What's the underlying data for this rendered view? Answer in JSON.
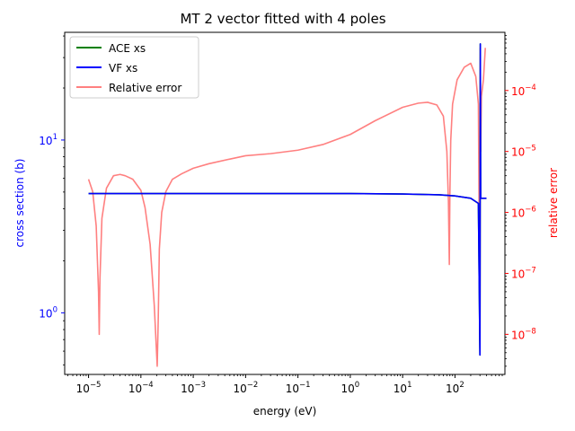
{
  "chart_data": {
    "type": "line",
    "title": "MT 2 vector fitted with 4 poles",
    "xlabel": "energy (eV)",
    "ylabel_left": "cross section (b)",
    "ylabel_right": "relative error",
    "x_scale": "log",
    "y_left_scale": "log",
    "y_right_scale": "log",
    "xlim": [
      3.5e-06,
      900
    ],
    "ylim_left": [
      0.44,
      42
    ],
    "ylim_right": [
      2.2e-09,
      0.0009
    ],
    "grid": false,
    "legend_placement": "upper-left",
    "x_ticks": [
      {
        "value": 1e-05,
        "base": "10",
        "exp": "−5"
      },
      {
        "value": 0.0001,
        "base": "10",
        "exp": "−4"
      },
      {
        "value": 0.001,
        "base": "10",
        "exp": "−3"
      },
      {
        "value": 0.01,
        "base": "10",
        "exp": "−2"
      },
      {
        "value": 0.1,
        "base": "10",
        "exp": "−1"
      },
      {
        "value": 1,
        "base": "10",
        "exp": "0"
      },
      {
        "value": 10,
        "base": "10",
        "exp": "1"
      },
      {
        "value": 100,
        "base": "10",
        "exp": "2"
      }
    ],
    "y_left_ticks": [
      {
        "value": 1,
        "base": "10",
        "exp": "0"
      },
      {
        "value": 10,
        "base": "10",
        "exp": "1"
      }
    ],
    "y_right_ticks": [
      {
        "value": 1e-08,
        "base": "10",
        "exp": "−8"
      },
      {
        "value": 1e-07,
        "base": "10",
        "exp": "−7"
      },
      {
        "value": 1e-06,
        "base": "10",
        "exp": "−6"
      },
      {
        "value": 1e-05,
        "base": "10",
        "exp": "−5"
      },
      {
        "value": 0.0001,
        "base": "10",
        "exp": "−4"
      }
    ],
    "series": [
      {
        "name": "ACE xs",
        "axis": "left",
        "color": "#008000",
        "x": [
          1e-05,
          0.0001,
          0.001,
          0.01,
          0.1,
          1,
          10,
          50,
          100,
          200,
          280,
          300,
          305,
          310,
          315,
          320,
          400
        ],
        "y": [
          4.9,
          4.9,
          4.9,
          4.9,
          4.9,
          4.9,
          4.87,
          4.82,
          4.75,
          4.6,
          4.3,
          0.57,
          36,
          4.6,
          4.6,
          4.6,
          4.6
        ]
      },
      {
        "name": "VF xs",
        "axis": "left",
        "color": "#0000ff",
        "x": [
          1e-05,
          0.0001,
          0.001,
          0.01,
          0.1,
          1,
          10,
          50,
          100,
          200,
          280,
          300,
          305,
          310,
          315,
          320,
          400
        ],
        "y": [
          4.9,
          4.9,
          4.9,
          4.9,
          4.9,
          4.9,
          4.87,
          4.82,
          4.75,
          4.6,
          4.3,
          0.57,
          36,
          4.6,
          4.6,
          4.6,
          4.6
        ]
      },
      {
        "name": "Relative error",
        "axis": "right",
        "color": "#ff8080",
        "x": [
          1e-05,
          1.2e-05,
          1.4e-05,
          1.55e-05,
          1.6e-05,
          1.65e-05,
          1.8e-05,
          2.2e-05,
          3e-05,
          4e-05,
          5e-05,
          7e-05,
          0.0001,
          0.00012,
          0.00015,
          0.00018,
          0.000205,
          0.000215,
          0.000225,
          0.00025,
          0.0003,
          0.0004,
          0.0006,
          0.001,
          0.002,
          0.005,
          0.01,
          0.03,
          0.1,
          0.3,
          1,
          3,
          10,
          20,
          30,
          45,
          60,
          70,
          75,
          78,
          80,
          83,
          90,
          110,
          150,
          200,
          250,
          280,
          300,
          305,
          310,
          320,
          350,
          380
        ],
        "y": [
          3.5e-06,
          2.2e-06,
          6e-07,
          5e-08,
          1e-08,
          8e-08,
          8e-07,
          2.5e-06,
          4e-06,
          4.2e-06,
          4e-06,
          3.5e-06,
          2.3e-06,
          1.2e-06,
          3e-07,
          3e-08,
          3e-09,
          2e-08,
          2.5e-07,
          1e-06,
          2.2e-06,
          3.5e-06,
          4.3e-06,
          5.3e-06,
          6.3e-06,
          7.5e-06,
          8.5e-06,
          9.2e-06,
          1.05e-05,
          1.3e-05,
          1.9e-05,
          3.2e-05,
          5.3e-05,
          6.2e-05,
          6.4e-05,
          5.8e-05,
          3.8e-05,
          1e-05,
          1.5e-06,
          1.4e-07,
          2e-06,
          1.5e-05,
          6e-05,
          0.00015,
          0.00024,
          0.00028,
          0.00017,
          6e-05,
          6e-09,
          0.0005,
          1e-05,
          8e-05,
          0.00015,
          0.0005
        ]
      }
    ]
  }
}
